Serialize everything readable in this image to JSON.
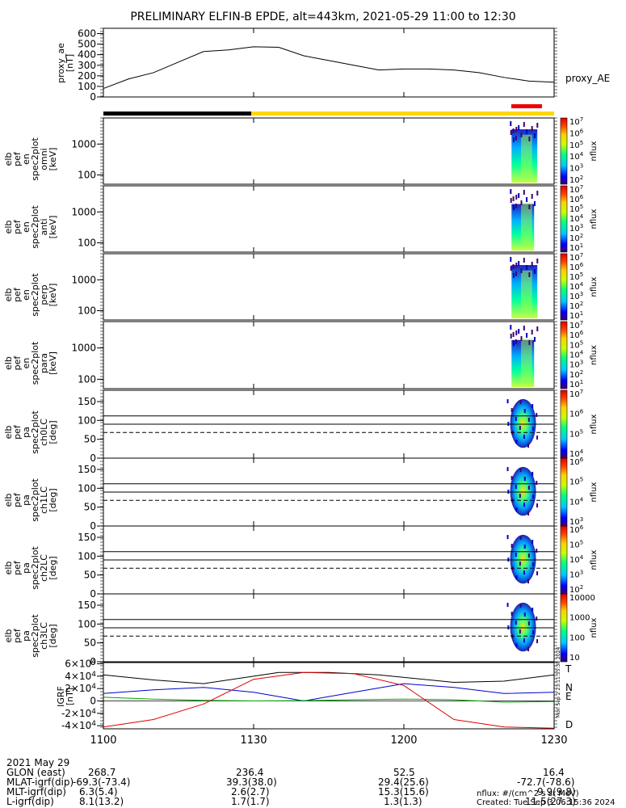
{
  "title": "PRELIMINARY ELFIN-B EPDE, alt=443km, 2021-05-29 11:00 to 12:30",
  "chart_data": [
    {
      "type": "line",
      "panel": "proxy_ae",
      "ylabel": "proxy_ae [nT]",
      "yticks": [
        "0",
        "100",
        "200",
        "300",
        "400",
        "500",
        "600"
      ],
      "ylim": [
        0,
        650
      ],
      "legend": "proxy_AE",
      "x_minutes": [
        0,
        5,
        10,
        15,
        20,
        25,
        30,
        35,
        40,
        45,
        50,
        55,
        60,
        65,
        70,
        75,
        80,
        85,
        90
      ],
      "values": [
        80,
        170,
        230,
        330,
        430,
        445,
        475,
        470,
        390,
        345,
        300,
        255,
        265,
        265,
        255,
        230,
        185,
        150,
        140
      ]
    },
    {
      "type": "heatmap",
      "panel": "elb_pef_en_spec2plot_omni",
      "ylabel": "elb pef en spec2plot omni [keV]",
      "yticks": [
        "100",
        "1000"
      ],
      "colorbar_ticks": [
        "10^2",
        "10^3",
        "10^4",
        "10^5",
        "10^6",
        "10^7"
      ],
      "colorbar_label": "nflux"
    },
    {
      "type": "heatmap",
      "panel": "elb_pef_en_spec2plot_anti",
      "ylabel": "elb pef en spec2plot anti [keV]",
      "yticks": [
        "100",
        "1000"
      ],
      "colorbar_ticks": [
        "10^1",
        "10^2",
        "10^3",
        "10^4",
        "10^5",
        "10^6",
        "10^7"
      ],
      "colorbar_label": "nflux"
    },
    {
      "type": "heatmap",
      "panel": "elb_pef_en_spec2plot_perp",
      "ylabel": "elb pef en spec2plot perp [keV]",
      "yticks": [
        "100",
        "1000"
      ],
      "colorbar_ticks": [
        "10^1",
        "10^2",
        "10^3",
        "10^4",
        "10^5",
        "10^6",
        "10^7"
      ],
      "colorbar_label": "nflux"
    },
    {
      "type": "heatmap",
      "panel": "elb_pef_en_spec2plot_para",
      "ylabel": "elb pef en spec2plot para [keV]",
      "yticks": [
        "100",
        "1000"
      ],
      "colorbar_ticks": [
        "10^1",
        "10^2",
        "10^3",
        "10^4",
        "10^5",
        "10^6",
        "10^7"
      ],
      "colorbar_label": "nflux"
    },
    {
      "type": "heatmap",
      "panel": "elb_pef_pa_spec2plot_ch0LC",
      "ylabel": "elb pef pa spec2plot ch0LC [deg]",
      "yticks": [
        "0",
        "50",
        "100",
        "150"
      ],
      "colorbar_ticks": [
        "10^4",
        "10^5",
        "10^6",
        "10^7"
      ],
      "colorbar_label": "nflux"
    },
    {
      "type": "heatmap",
      "panel": "elb_pef_pa_spec2plot_ch1LC",
      "ylabel": "elb pef pa spec2plot ch1LC [deg]",
      "yticks": [
        "0",
        "50",
        "100",
        "150"
      ],
      "colorbar_ticks": [
        "10^3",
        "10^4",
        "10^5",
        "10^6"
      ],
      "colorbar_label": "nflux"
    },
    {
      "type": "heatmap",
      "panel": "elb_pef_pa_spec2plot_ch2LC",
      "ylabel": "elb pef pa spec2plot ch2LC [deg]",
      "yticks": [
        "0",
        "50",
        "100",
        "150"
      ],
      "colorbar_ticks": [
        "10^2",
        "10^3",
        "10^4",
        "10^5",
        "10^6"
      ],
      "colorbar_label": "nflux"
    },
    {
      "type": "heatmap",
      "panel": "elb_pef_pa_spec2plot_ch3LC",
      "ylabel": "elb pef pa spec2plot ch3LC [deg]",
      "yticks": [
        "0",
        "50",
        "100",
        "150"
      ],
      "colorbar_ticks": [
        "10",
        "100",
        "1000",
        "10000"
      ],
      "colorbar_label": "nflux"
    },
    {
      "type": "line",
      "panel": "IGRF",
      "ylabel": "IGRF [nT]",
      "yticks": [
        "-4x10^4",
        "-2x10^4",
        "0",
        "2x10^4",
        "4x10^4",
        "6x10^4"
      ],
      "ylim": [
        -45000,
        62000
      ],
      "series": [
        {
          "name": "T",
          "color": "#000000",
          "x_minutes": [
            0,
            10,
            20,
            30,
            35,
            45,
            55,
            70,
            80,
            90
          ],
          "values": [
            42000,
            34000,
            28000,
            40000,
            46000,
            46000,
            42000,
            30000,
            32000,
            42000
          ]
        },
        {
          "name": "N",
          "color": "#0000cc",
          "x_minutes": [
            0,
            10,
            20,
            30,
            40,
            50,
            60,
            70,
            80,
            90
          ],
          "values": [
            12000,
            18000,
            22000,
            14000,
            0,
            14000,
            28000,
            22000,
            12000,
            14000
          ]
        },
        {
          "name": "E",
          "color": "#00aa00",
          "x_minutes": [
            0,
            10,
            20,
            30,
            40,
            50,
            60,
            70,
            80,
            90
          ],
          "values": [
            6000,
            3000,
            1000,
            0,
            500,
            2000,
            3000,
            2000,
            -2000,
            -1000
          ]
        },
        {
          "name": "D",
          "color": "#dd0000",
          "x_minutes": [
            0,
            10,
            20,
            30,
            40,
            50,
            60,
            70,
            80,
            90
          ],
          "values": [
            -42000,
            -30000,
            -5000,
            35000,
            46000,
            44000,
            25000,
            -30000,
            -42000,
            -44000
          ]
        }
      ]
    }
  ],
  "x_axis": {
    "ticks": [
      "1100",
      "1130",
      "1200",
      "1230"
    ],
    "rows": [
      {
        "label": "2021 May 29",
        "values": [
          "1100",
          "1130",
          "1200",
          "1230"
        ]
      },
      {
        "label": "GLON (east)",
        "values": [
          "268.7",
          "236.4",
          "52.5",
          "16.4"
        ]
      },
      {
        "label": "MLAT-igrf(dip)",
        "values": [
          "-69.3(-73.4)",
          "39.3(38.0)",
          "29.4(25.6)",
          "-72.7(-78.6)"
        ]
      },
      {
        "label": "MLT-igrf(dip)",
        "values": [
          "6.3(5.4)",
          "2.6(2.7)",
          "15.3(15.6)",
          "9.9(9.8)"
        ]
      },
      {
        "label": "L-igrf(dip)",
        "values": [
          "8.1(13.2)",
          "1.7(1.7)",
          "1.3(1.3)",
          "11.5(27.3)"
        ]
      }
    ]
  },
  "footer": {
    "units": "nflux: #/(cm^2 s sr MeV)",
    "created": "Created: Tue Sep  3 06:15:36 2024",
    "side_stamp": "Mon Sep  2 23:11:55:38 2024"
  }
}
